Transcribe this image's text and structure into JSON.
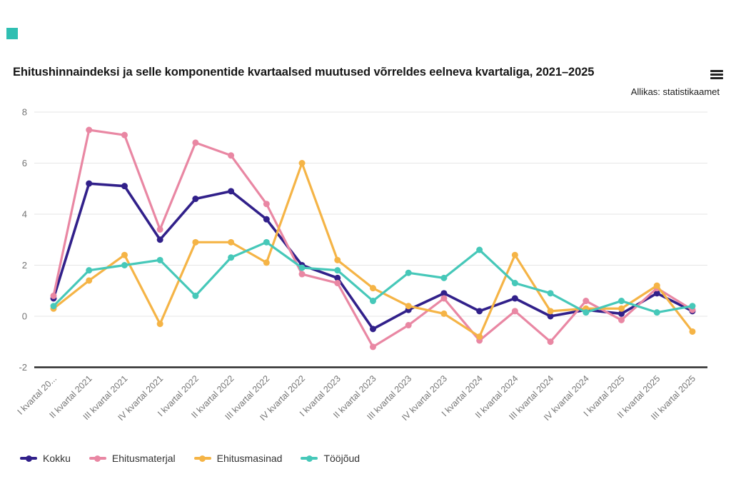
{
  "page": {
    "corner_color": "#2fbfb2"
  },
  "chart_data": {
    "type": "line",
    "title": "Ehitushinnaindeksi ja selle komponentide kvartaalsed muutused võrreldes eelneva kvartaliga, 2021–2025",
    "source": "Allikas: statistikaamet",
    "categories": [
      "I kvartal 20...",
      "II kvartal 2021",
      "III kvartal 2021",
      "IV kvartal 2021",
      "I kvartal 2022",
      "II kvartal 2022",
      "III kvartal 2022",
      "IV kvartal 2022",
      "I kvartal 2023",
      "II kvartal 2023",
      "III kvartal 2023",
      "IV kvartal 2023",
      "I kvartal 2024",
      "II kvartal 2024",
      "III kvartal 2024",
      "IV kvartal 2024",
      "I kvartal 2025",
      "II kvartal 2025",
      "III kvartal 2025"
    ],
    "series": [
      {
        "name": "Kokku",
        "color": "#31208a",
        "values": [
          0.7,
          5.2,
          5.1,
          3.0,
          4.6,
          4.9,
          3.8,
          2.0,
          1.5,
          -0.5,
          0.25,
          0.9,
          0.2,
          0.7,
          0.0,
          0.25,
          0.1,
          0.9,
          0.2
        ]
      },
      {
        "name": "Ehitusmaterjal",
        "color": "#e987a3",
        "values": [
          0.8,
          7.3,
          7.1,
          3.4,
          6.8,
          6.3,
          4.4,
          1.65,
          1.3,
          -1.2,
          -0.35,
          0.7,
          -0.95,
          0.2,
          -1.0,
          0.6,
          -0.15,
          1.1,
          0.25
        ]
      },
      {
        "name": "Ehitusmasinad",
        "color": "#f5b446",
        "values": [
          0.3,
          1.4,
          2.4,
          -0.3,
          2.9,
          2.9,
          2.1,
          6.0,
          2.2,
          1.1,
          0.4,
          0.1,
          -0.8,
          2.4,
          0.2,
          0.3,
          0.3,
          1.2,
          -0.6
        ]
      },
      {
        "name": "Tööjõud",
        "color": "#46c8b9",
        "values": [
          0.4,
          1.8,
          2.0,
          2.2,
          0.8,
          2.3,
          2.9,
          1.9,
          1.8,
          0.6,
          1.7,
          1.5,
          2.6,
          1.3,
          0.9,
          0.15,
          0.6,
          0.15,
          0.4
        ]
      }
    ],
    "ylim": [
      -2,
      8
    ],
    "yticks": [
      8,
      6,
      4,
      2,
      0,
      -2
    ],
    "grid": true,
    "x_tick_rotation": -45,
    "legend_position": "bottom",
    "colors": {
      "grid": "#e6e6e6",
      "axis": "#2d2d2d",
      "tick_labels": "#757575"
    }
  }
}
